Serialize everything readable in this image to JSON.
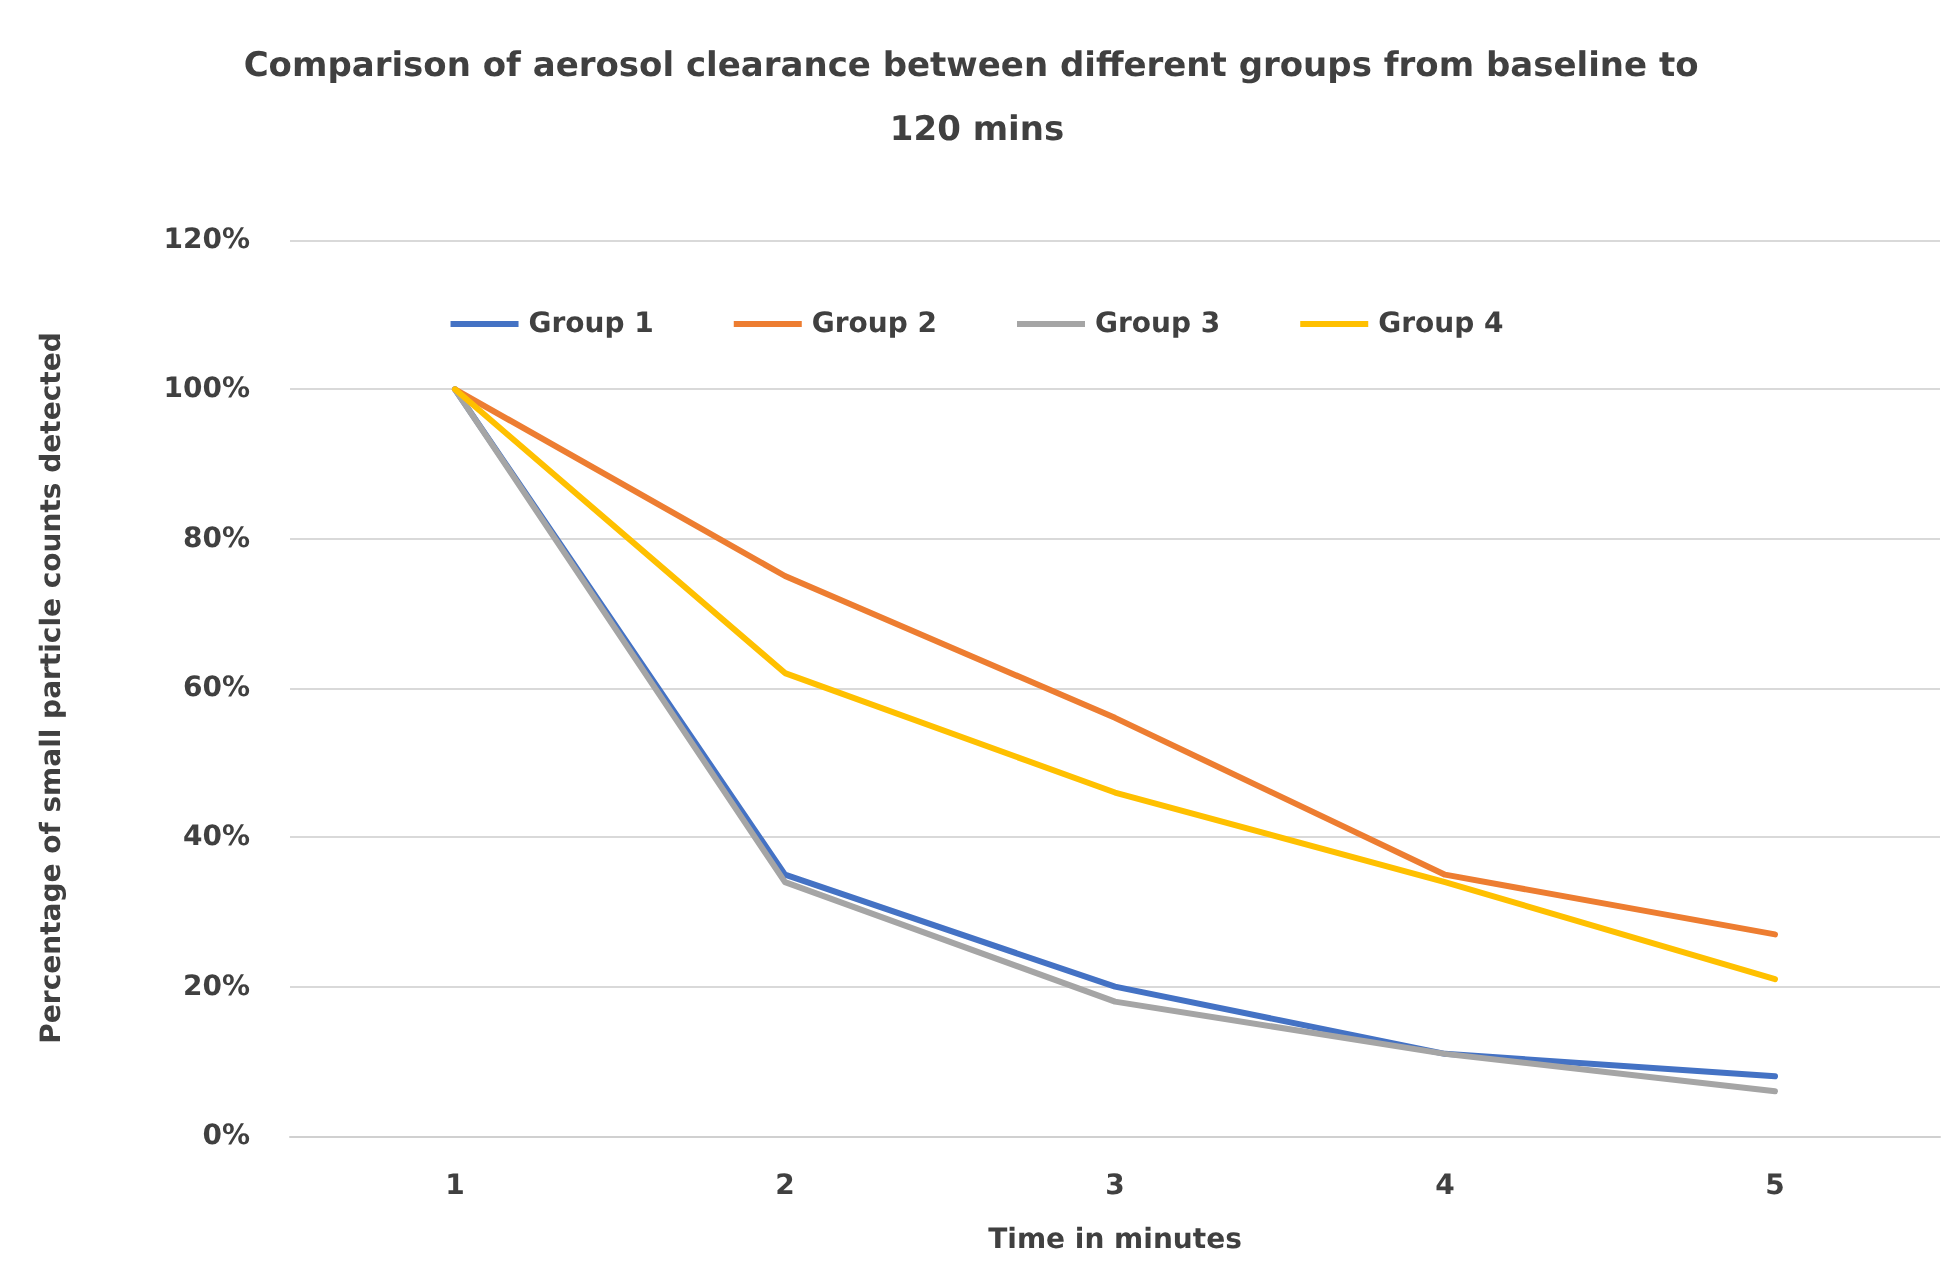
{
  "chart_data": {
    "type": "line",
    "title": "Comparison of aerosol clearance between different groups from baseline to 120 mins",
    "xlabel": "Time in minutes",
    "ylabel": "Percentage of small particle counts detected",
    "categories": [
      "1",
      "2",
      "3",
      "4",
      "5"
    ],
    "series": [
      {
        "name": "Group 1",
        "color": "#4472c4",
        "values": [
          100,
          35,
          20,
          11,
          8
        ]
      },
      {
        "name": "Group 2",
        "color": "#ed7d31",
        "values": [
          100,
          75,
          56,
          35,
          27
        ]
      },
      {
        "name": "Group 3",
        "color": "#a5a5a5",
        "values": [
          100,
          34,
          18,
          11,
          6
        ]
      },
      {
        "name": "Group 4",
        "color": "#ffc000",
        "values": [
          100,
          62,
          46,
          34,
          21
        ]
      }
    ],
    "ylim": [
      0,
      120
    ],
    "yticks": [
      {
        "value": 0,
        "label": "0%"
      },
      {
        "value": 20,
        "label": "20%"
      },
      {
        "value": 40,
        "label": "40%"
      },
      {
        "value": 60,
        "label": "60%"
      },
      {
        "value": 80,
        "label": "80%"
      },
      {
        "value": 100,
        "label": "100%"
      },
      {
        "value": 120,
        "label": "120%"
      }
    ],
    "grid": "y",
    "legend": "top",
    "marker": "none",
    "line_style": "solid"
  }
}
